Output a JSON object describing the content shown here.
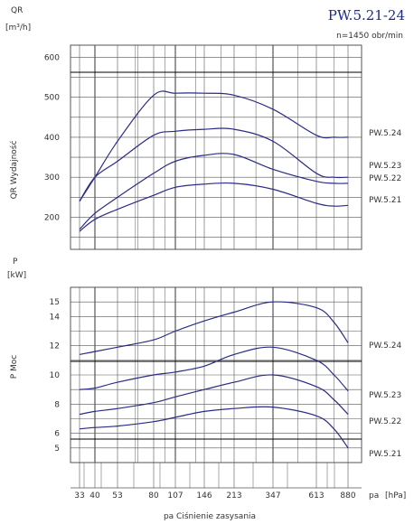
{
  "figure": {
    "title": "PW.5.21-24",
    "subtitle": "n=1450 obr/min"
  },
  "colors": {
    "curve": "#2a2c86",
    "grid": "#555555",
    "text": "#333333",
    "title": "#1a2a8c"
  },
  "chart_data": [
    {
      "type": "line",
      "title": "",
      "ylabel_symbol": "QR",
      "ylabel_unit": "[m³/h]",
      "ylabel_text": "QR Wydajność",
      "xlabel": "",
      "x_tick_labels": [
        "33",
        "40",
        "53",
        "80",
        "107",
        "146",
        "213",
        "347",
        "613",
        "880"
      ],
      "ylim": [
        120,
        630
      ],
      "y_ticks": [
        200,
        300,
        400,
        500,
        600
      ],
      "grid": true,
      "series": [
        {
          "name": "PW.5.24",
          "points": [
            [
              33,
              240
            ],
            [
              40,
              300
            ],
            [
              53,
              390
            ],
            [
              80,
              505
            ],
            [
              107,
              510
            ],
            [
              146,
              510
            ],
            [
              213,
              505
            ],
            [
              347,
              470
            ],
            [
              613,
              405
            ],
            [
              750,
              400
            ],
            [
              880,
              400
            ]
          ]
        },
        {
          "name": "PW.5.23",
          "points": [
            [
              33,
              240
            ],
            [
              40,
              300
            ],
            [
              53,
              340
            ],
            [
              80,
              405
            ],
            [
              107,
              415
            ],
            [
              146,
              420
            ],
            [
              213,
              420
            ],
            [
              347,
              390
            ],
            [
              613,
              310
            ],
            [
              750,
              300
            ],
            [
              880,
              300
            ]
          ]
        },
        {
          "name": "PW.5.22",
          "points": [
            [
              33,
              170
            ],
            [
              40,
              210
            ],
            [
              53,
              250
            ],
            [
              80,
              310
            ],
            [
              107,
              340
            ],
            [
              146,
              355
            ],
            [
              213,
              357
            ],
            [
              347,
              320
            ],
            [
              613,
              290
            ],
            [
              750,
              285
            ],
            [
              880,
              285
            ]
          ]
        },
        {
          "name": "PW.5.21",
          "points": [
            [
              33,
              165
            ],
            [
              40,
              195
            ],
            [
              53,
              220
            ],
            [
              80,
              255
            ],
            [
              107,
              275
            ],
            [
              146,
              283
            ],
            [
              213,
              285
            ],
            [
              347,
              270
            ],
            [
              613,
              235
            ],
            [
              750,
              228
            ],
            [
              880,
              230
            ]
          ]
        }
      ]
    },
    {
      "type": "line",
      "title": "",
      "ylabel_symbol": "P",
      "ylabel_unit": "[kW]",
      "ylabel_text": "P  Moc",
      "xlabel": "pa  Ciśnienie zasysania",
      "xunit_symbol": "pa",
      "xunit": "[hPa]",
      "x_tick_labels": [
        "33",
        "40",
        "53",
        "80",
        "107",
        "146",
        "213",
        "347",
        "613",
        "880"
      ],
      "ylim": [
        4,
        16
      ],
      "y_ticks": [
        5,
        6,
        8,
        10,
        12,
        14,
        15
      ],
      "grid": true,
      "series": [
        {
          "name": "PW.5.24",
          "points": [
            [
              33,
              11.4
            ],
            [
              40,
              11.6
            ],
            [
              53,
              11.9
            ],
            [
              80,
              12.4
            ],
            [
              107,
              13.0
            ],
            [
              146,
              13.7
            ],
            [
              213,
              14.3
            ],
            [
              347,
              15.0
            ],
            [
              613,
              14.6
            ],
            [
              750,
              13.6
            ],
            [
              880,
              12.2
            ]
          ]
        },
        {
          "name": "PW.5.23",
          "points": [
            [
              33,
              9.0
            ],
            [
              40,
              9.1
            ],
            [
              53,
              9.5
            ],
            [
              80,
              10.0
            ],
            [
              107,
              10.2
            ],
            [
              146,
              10.6
            ],
            [
              213,
              11.4
            ],
            [
              347,
              11.9
            ],
            [
              613,
              11.0
            ],
            [
              750,
              10.0
            ],
            [
              880,
              8.9
            ]
          ]
        },
        {
          "name": "PW.5.22",
          "points": [
            [
              33,
              7.3
            ],
            [
              40,
              7.5
            ],
            [
              53,
              7.7
            ],
            [
              80,
              8.1
            ],
            [
              107,
              8.5
            ],
            [
              146,
              9.0
            ],
            [
              213,
              9.5
            ],
            [
              347,
              10.0
            ],
            [
              613,
              9.2
            ],
            [
              750,
              8.3
            ],
            [
              880,
              7.3
            ]
          ]
        },
        {
          "name": "PW.5.21",
          "points": [
            [
              33,
              6.3
            ],
            [
              40,
              6.4
            ],
            [
              53,
              6.5
            ],
            [
              80,
              6.8
            ],
            [
              107,
              7.1
            ],
            [
              146,
              7.5
            ],
            [
              213,
              7.7
            ],
            [
              347,
              7.8
            ],
            [
              613,
              7.2
            ],
            [
              750,
              6.3
            ],
            [
              880,
              5.0
            ]
          ]
        }
      ]
    }
  ]
}
